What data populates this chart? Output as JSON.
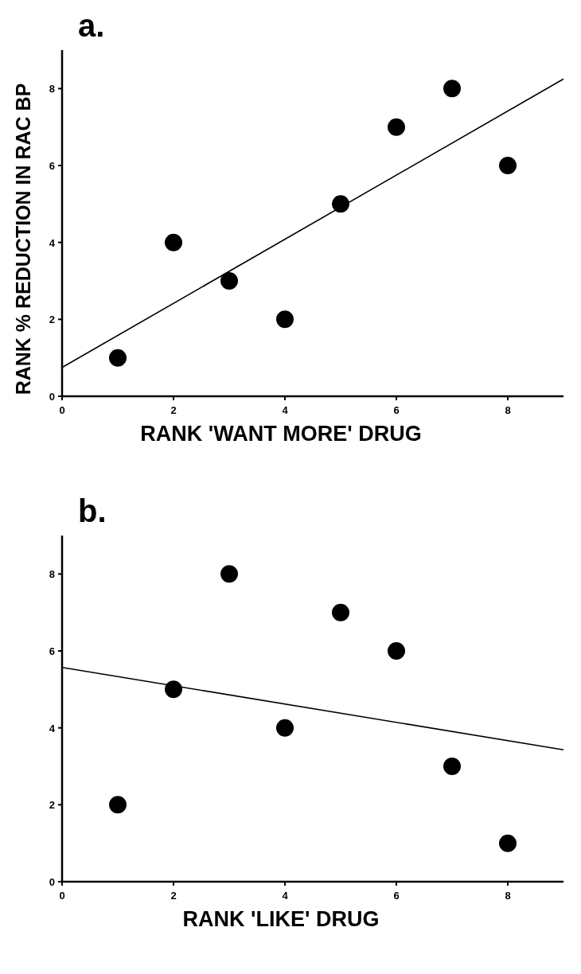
{
  "chart_data": [
    {
      "type": "scatter",
      "title": "a.",
      "xlabel": "RANK 'WANT MORE' DRUG",
      "ylabel": "RANK % REDUCTION IN RAC BP",
      "xlim": [
        0,
        9
      ],
      "ylim": [
        0,
        9
      ],
      "xticks": [
        0,
        2,
        4,
        6,
        8
      ],
      "yticks": [
        0,
        2,
        4,
        6,
        8
      ],
      "series": [
        {
          "color": "#000000",
          "marker": "circle",
          "x": [
            1,
            2,
            3,
            4,
            5,
            6,
            7,
            8
          ],
          "values": [
            1,
            4,
            3,
            2,
            5,
            7,
            8,
            6
          ]
        },
        {
          "type": "line",
          "color": "#000000",
          "x": [
            0,
            9
          ],
          "values": [
            0.75,
            8.25
          ]
        }
      ]
    },
    {
      "type": "scatter",
      "title": "b.",
      "xlabel": "RANK 'LIKE' DRUG",
      "xlim": [
        0,
        9
      ],
      "ylim": [
        0,
        9
      ],
      "xticks": [
        0,
        2,
        4,
        6,
        8
      ],
      "yticks": [
        0,
        2,
        4,
        6,
        8
      ],
      "series": [
        {
          "color": "#000000",
          "marker": "circle",
          "x": [
            1,
            2,
            3,
            4,
            5,
            6,
            7,
            8
          ],
          "values": [
            2,
            5,
            8,
            4,
            7,
            6,
            3,
            1
          ]
        },
        {
          "type": "line",
          "color": "#000000",
          "x": [
            0,
            9
          ],
          "values": [
            5.57,
            3.43
          ]
        }
      ]
    }
  ]
}
